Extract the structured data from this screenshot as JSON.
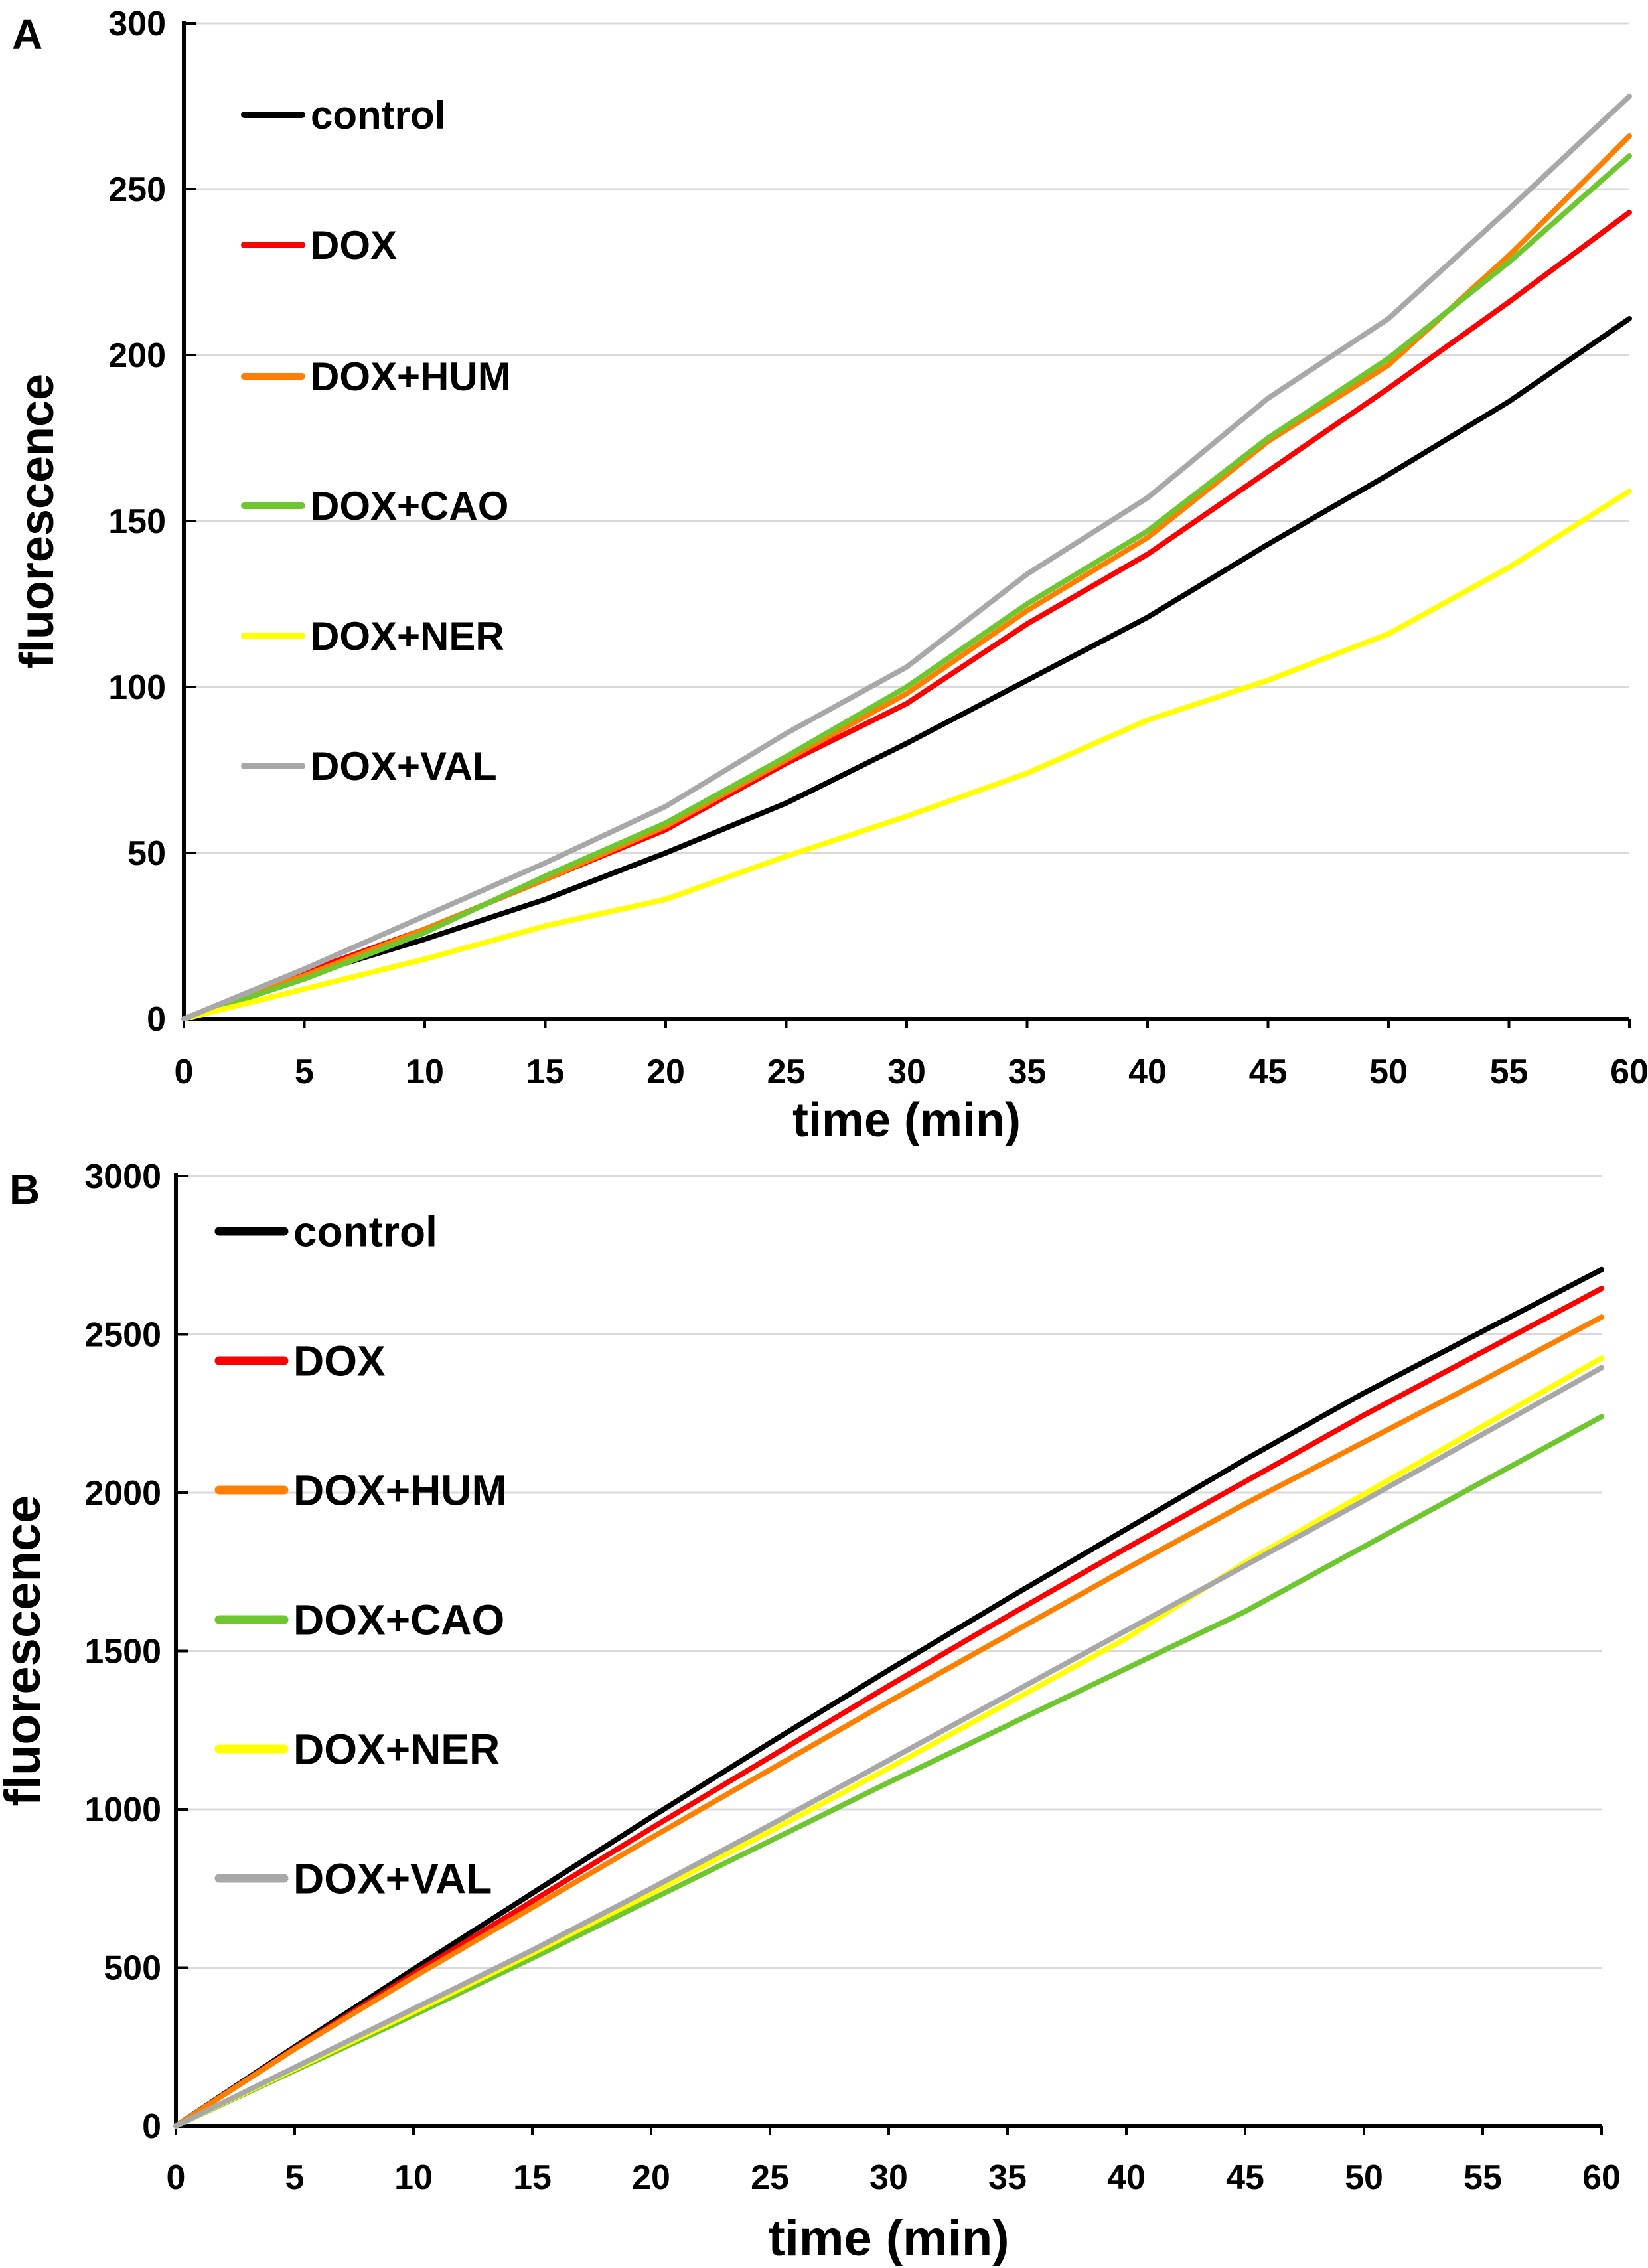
{
  "figure": {
    "background": "#FFFFFF",
    "grid_color": "#D9D9D9",
    "axis_color": "#000000"
  },
  "panels": [
    {
      "label": "A",
      "ylabel": "fluorescence",
      "xlabel": "time (min)",
      "legend_text_color": "#000000",
      "tick_label_color": "#000000"
    },
    {
      "label": "B",
      "ylabel": "fluorescence",
      "xlabel": "time (min)",
      "legend_text_color": "#595959",
      "tick_label_color": "#000000"
    }
  ],
  "chart_data": [
    {
      "type": "line",
      "title": "",
      "xlabel": "time (min)",
      "ylabel": "fluorescence",
      "x": [
        0,
        5,
        10,
        15,
        20,
        25,
        30,
        35,
        40,
        45,
        50,
        55,
        60
      ],
      "xlim": [
        0,
        60
      ],
      "ylim": [
        0,
        300
      ],
      "x_ticks": [
        0,
        5,
        10,
        15,
        20,
        25,
        30,
        35,
        40,
        45,
        50,
        55,
        60
      ],
      "y_ticks": [
        0,
        50,
        100,
        150,
        200,
        250,
        300
      ],
      "grid": true,
      "legend_position": "upper-left-inside",
      "series": [
        {
          "name": "control",
          "color": "#000000",
          "values": [
            0,
            13,
            24,
            36,
            50,
            65,
            83,
            102,
            121,
            143,
            164,
            186,
            211
          ]
        },
        {
          "name": "DOX",
          "color": "#FF0000",
          "values": [
            0,
            14,
            27,
            42,
            57,
            77,
            95,
            119,
            140,
            165,
            190,
            216,
            243
          ]
        },
        {
          "name": "DOX+HUM",
          "color": "#FF8000",
          "values": [
            0,
            13,
            27,
            42,
            58,
            78,
            98,
            123,
            145,
            174,
            197,
            230,
            266
          ]
        },
        {
          "name": "DOX+CAO",
          "color": "#6EC72F",
          "values": [
            0,
            12,
            26,
            43,
            59,
            79,
            100,
            125,
            147,
            175,
            199,
            228,
            260
          ]
        },
        {
          "name": "DOX+NER",
          "color": "#FFFF00",
          "values": [
            0,
            9,
            18,
            28,
            36,
            49,
            61,
            74,
            90,
            102,
            116,
            136,
            159
          ]
        },
        {
          "name": "DOX+VAL",
          "color": "#A8A8A8",
          "values": [
            0,
            15,
            31,
            47,
            64,
            86,
            106,
            134,
            157,
            187,
            211,
            244,
            278
          ]
        }
      ]
    },
    {
      "type": "line",
      "title": "",
      "xlabel": "time (min)",
      "ylabel": "fluorescence",
      "x": [
        0,
        5,
        10,
        15,
        20,
        25,
        30,
        35,
        40,
        45,
        50,
        55,
        60
      ],
      "xlim": [
        0,
        60
      ],
      "ylim": [
        0,
        3000
      ],
      "x_ticks": [
        0,
        5,
        10,
        15,
        20,
        25,
        30,
        35,
        40,
        45,
        50,
        55,
        60
      ],
      "y_ticks": [
        0,
        500,
        1000,
        1500,
        2000,
        2500,
        3000
      ],
      "grid": true,
      "legend_position": "upper-left-inside",
      "series": [
        {
          "name": "control",
          "color": "#000000",
          "values": [
            0,
            250,
            495,
            735,
            975,
            1210,
            1440,
            1665,
            1885,
            2105,
            2315,
            2510,
            2705
          ]
        },
        {
          "name": "DOX",
          "color": "#FF0000",
          "values": [
            0,
            245,
            480,
            710,
            940,
            1165,
            1390,
            1610,
            1825,
            2035,
            2245,
            2445,
            2645
          ]
        },
        {
          "name": "DOX+HUM",
          "color": "#FF8000",
          "values": [
            0,
            243,
            470,
            690,
            910,
            1125,
            1340,
            1550,
            1760,
            1965,
            2160,
            2355,
            2555
          ]
        },
        {
          "name": "DOX+CAO",
          "color": "#6EC72F",
          "values": [
            0,
            175,
            350,
            530,
            715,
            900,
            1085,
            1265,
            1445,
            1625,
            1830,
            2035,
            2240
          ]
        },
        {
          "name": "DOX+NER",
          "color": "#FFFF00",
          "values": [
            0,
            180,
            360,
            545,
            735,
            930,
            1130,
            1335,
            1540,
            1780,
            1995,
            2210,
            2425
          ]
        },
        {
          "name": "DOX+VAL",
          "color": "#A8A8A8",
          "values": [
            0,
            185,
            370,
            555,
            750,
            950,
            1155,
            1360,
            1565,
            1770,
            1975,
            2185,
            2395
          ]
        }
      ]
    }
  ]
}
